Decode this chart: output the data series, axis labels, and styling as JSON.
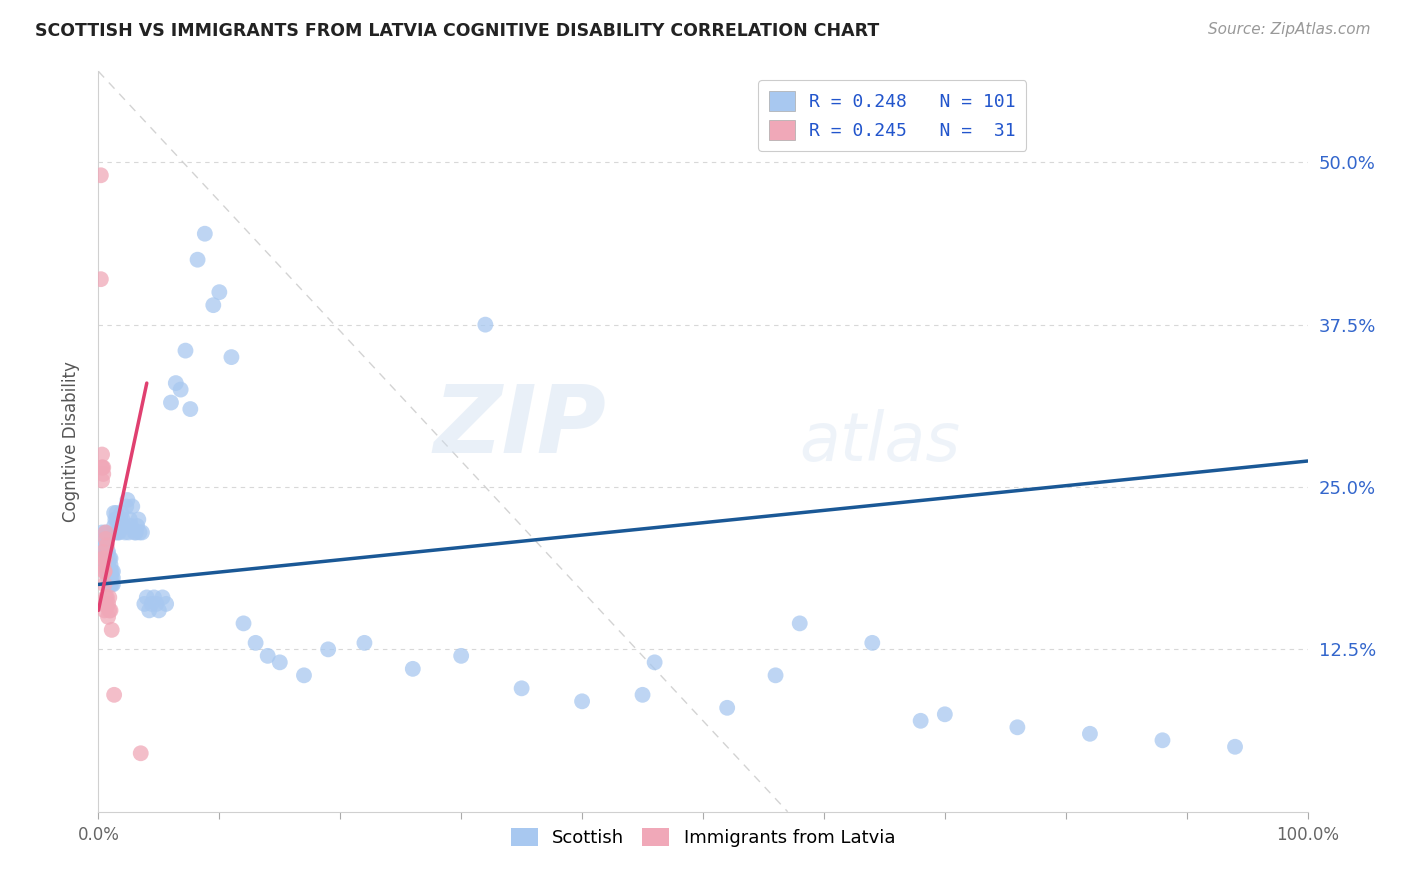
{
  "title": "SCOTTISH VS IMMIGRANTS FROM LATVIA COGNITIVE DISABILITY CORRELATION CHART",
  "source": "Source: ZipAtlas.com",
  "ylabel": "Cognitive Disability",
  "ytick_labels": [
    "12.5%",
    "25.0%",
    "37.5%",
    "50.0%"
  ],
  "ytick_values": [
    0.125,
    0.25,
    0.375,
    0.5
  ],
  "xlim": [
    0.0,
    1.0
  ],
  "ylim": [
    0.0,
    0.57
  ],
  "color_scottish": "#a8c8f0",
  "color_scottish_line": "#1a5896",
  "color_latvia": "#f0a8b8",
  "color_latvia_line": "#e04070",
  "color_legend_text": "#2255cc",
  "color_ytick": "#3366cc",
  "background": "#ffffff",
  "watermark_zip": "ZIP",
  "watermark_atlas": "atlas",
  "scottish_points_x": [
    0.003,
    0.004,
    0.004,
    0.005,
    0.005,
    0.005,
    0.006,
    0.006,
    0.006,
    0.006,
    0.007,
    0.007,
    0.007,
    0.007,
    0.008,
    0.008,
    0.008,
    0.008,
    0.009,
    0.009,
    0.009,
    0.01,
    0.01,
    0.01,
    0.01,
    0.011,
    0.011,
    0.011,
    0.012,
    0.012,
    0.012,
    0.013,
    0.013,
    0.014,
    0.014,
    0.015,
    0.015,
    0.016,
    0.016,
    0.017,
    0.018,
    0.018,
    0.019,
    0.02,
    0.021,
    0.022,
    0.023,
    0.024,
    0.025,
    0.026,
    0.027,
    0.028,
    0.03,
    0.031,
    0.032,
    0.033,
    0.034,
    0.036,
    0.038,
    0.04,
    0.042,
    0.044,
    0.046,
    0.048,
    0.05,
    0.053,
    0.056,
    0.06,
    0.064,
    0.068,
    0.072,
    0.076,
    0.082,
    0.088,
    0.095,
    0.1,
    0.11,
    0.12,
    0.13,
    0.14,
    0.15,
    0.17,
    0.19,
    0.22,
    0.26,
    0.3,
    0.35,
    0.4,
    0.45,
    0.52,
    0.58,
    0.64,
    0.7,
    0.76,
    0.82,
    0.88,
    0.94,
    0.56,
    0.46,
    0.68,
    0.32
  ],
  "scottish_points_y": [
    0.215,
    0.205,
    0.195,
    0.205,
    0.195,
    0.21,
    0.2,
    0.19,
    0.215,
    0.205,
    0.195,
    0.185,
    0.2,
    0.19,
    0.18,
    0.19,
    0.2,
    0.185,
    0.175,
    0.185,
    0.195,
    0.175,
    0.185,
    0.19,
    0.195,
    0.175,
    0.18,
    0.185,
    0.175,
    0.18,
    0.185,
    0.23,
    0.22,
    0.225,
    0.215,
    0.225,
    0.23,
    0.225,
    0.215,
    0.215,
    0.22,
    0.225,
    0.23,
    0.225,
    0.22,
    0.215,
    0.235,
    0.24,
    0.215,
    0.225,
    0.22,
    0.235,
    0.215,
    0.215,
    0.22,
    0.225,
    0.215,
    0.215,
    0.16,
    0.165,
    0.155,
    0.16,
    0.165,
    0.16,
    0.155,
    0.165,
    0.16,
    0.315,
    0.33,
    0.325,
    0.355,
    0.31,
    0.425,
    0.445,
    0.39,
    0.4,
    0.35,
    0.145,
    0.13,
    0.12,
    0.115,
    0.105,
    0.125,
    0.13,
    0.11,
    0.12,
    0.095,
    0.085,
    0.09,
    0.08,
    0.145,
    0.13,
    0.075,
    0.065,
    0.06,
    0.055,
    0.05,
    0.105,
    0.115,
    0.07,
    0.375
  ],
  "latvia_points_x": [
    0.002,
    0.002,
    0.003,
    0.003,
    0.003,
    0.003,
    0.004,
    0.004,
    0.004,
    0.004,
    0.004,
    0.005,
    0.005,
    0.005,
    0.005,
    0.005,
    0.006,
    0.006,
    0.006,
    0.006,
    0.007,
    0.007,
    0.007,
    0.008,
    0.008,
    0.009,
    0.009,
    0.01,
    0.011,
    0.013,
    0.035
  ],
  "latvia_points_y": [
    0.49,
    0.41,
    0.275,
    0.265,
    0.255,
    0.265,
    0.265,
    0.26,
    0.2,
    0.19,
    0.195,
    0.185,
    0.175,
    0.185,
    0.195,
    0.155,
    0.165,
    0.16,
    0.21,
    0.215,
    0.205,
    0.165,
    0.158,
    0.15,
    0.16,
    0.155,
    0.165,
    0.155,
    0.14,
    0.09,
    0.045
  ],
  "scottish_trend": [
    0.0,
    1.0,
    0.175,
    0.27
  ],
  "latvia_trend_x": [
    0.0,
    0.04
  ],
  "latvia_trend_y": [
    0.155,
    0.33
  ],
  "diag_line": [
    [
      0.0,
      0.57
    ],
    [
      0.57,
      0.0
    ]
  ]
}
